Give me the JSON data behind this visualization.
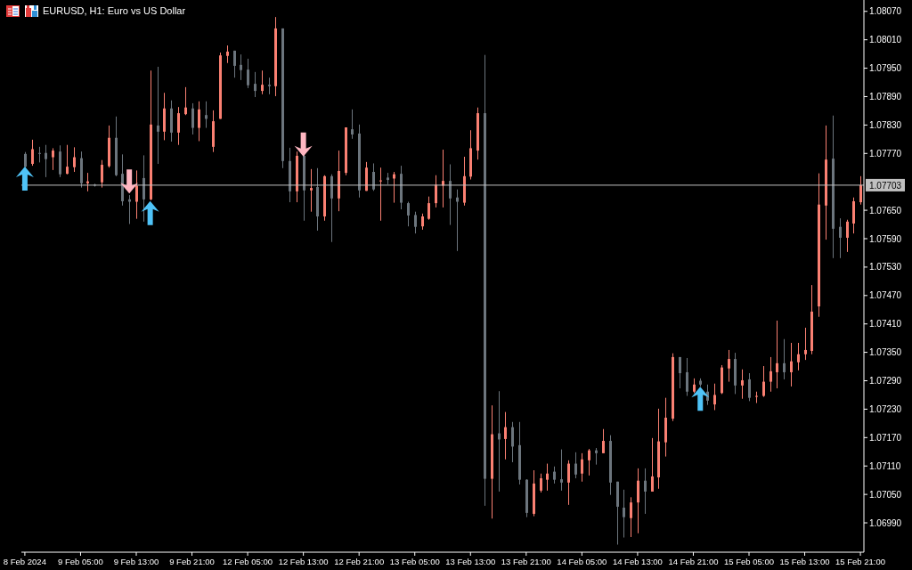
{
  "chart_data": {
    "type": "candlestick",
    "title": "EURUSD, H1: Euro vs US Dollar",
    "categories": [
      "8 Feb 2024",
      null,
      null,
      null,
      null,
      null,
      null,
      null,
      "9 Feb 05:00",
      null,
      null,
      null,
      null,
      null,
      null,
      null,
      "9 Feb 13:00",
      null,
      null,
      null,
      null,
      null,
      null,
      null,
      "9 Feb 21:00",
      null,
      null,
      null,
      null,
      null,
      null,
      null,
      "12 Feb 05:00",
      null,
      null,
      null,
      null,
      null,
      null,
      null,
      "12 Feb 13:00",
      null,
      null,
      null,
      null,
      null,
      null,
      null,
      "12 Feb 21:00",
      null,
      null,
      null,
      null,
      null,
      null,
      null,
      "13 Feb 05:00",
      null,
      null,
      null,
      null,
      null,
      null,
      null,
      "13 Feb 13:00",
      null,
      null,
      null,
      null,
      null,
      null,
      null,
      "13 Feb 21:00",
      null,
      null,
      null,
      null,
      null,
      null,
      null,
      "14 Feb 05:00",
      null,
      null,
      null,
      null,
      null,
      null,
      null,
      "14 Feb 13:00",
      null,
      null,
      null,
      null,
      null,
      null,
      null,
      "14 Feb 21:00",
      null,
      null,
      null,
      null,
      null,
      null,
      null,
      "15 Feb 05:00",
      null,
      null,
      null,
      null,
      null,
      null,
      null,
      "15 Feb 13:00",
      null,
      null,
      null,
      null,
      null,
      null,
      null,
      "15 Feb 21:00"
    ],
    "ohlc": [
      [
        1.07769,
        1.07773,
        1.0774,
        1.07742
      ],
      [
        1.07748,
        1.07799,
        1.07744,
        1.07779
      ],
      [
        1.07771,
        1.07784,
        1.07751,
        1.07769
      ],
      [
        1.07771,
        1.07788,
        1.0772,
        1.07758
      ],
      [
        1.07762,
        1.07781,
        1.07735,
        1.07776
      ],
      [
        1.07774,
        1.07787,
        1.0772,
        1.07726
      ],
      [
        1.07727,
        1.07788,
        1.07726,
        1.07742
      ],
      [
        1.07741,
        1.07783,
        1.07731,
        1.07762
      ],
      [
        1.0776,
        1.07774,
        1.07698,
        1.07707
      ],
      [
        1.07707,
        1.07729,
        1.0769,
        1.07711
      ],
      [
        1.07704,
        1.07706,
        1.077,
        1.07702
      ],
      [
        1.07709,
        1.07756,
        1.07698,
        1.07746
      ],
      [
        1.07743,
        1.07829,
        1.0774,
        1.07803
      ],
      [
        1.07803,
        1.07848,
        1.07722,
        1.07724
      ],
      [
        1.07727,
        1.07768,
        1.0766,
        1.07669
      ],
      [
        1.07673,
        1.07682,
        1.07621,
        1.07668
      ],
      [
        1.07668,
        1.07734,
        1.07632,
        1.07702
      ],
      [
        1.07718,
        1.07766,
        1.07626,
        1.07673
      ],
      [
        1.07673,
        1.07945,
        1.07671,
        1.07831
      ],
      [
        1.07829,
        1.07953,
        1.07748,
        1.07816
      ],
      [
        1.07816,
        1.07898,
        1.07798,
        1.07865
      ],
      [
        1.07865,
        1.07882,
        1.07795,
        1.07814
      ],
      [
        1.07814,
        1.07868,
        1.07788,
        1.07855
      ],
      [
        1.07853,
        1.0791,
        1.07851,
        1.07867
      ],
      [
        1.07865,
        1.07876,
        1.0781,
        1.07824
      ],
      [
        1.07824,
        1.0788,
        1.07796,
        1.07863
      ],
      [
        1.07851,
        1.0788,
        1.07824,
        1.07843
      ],
      [
        1.07784,
        1.07861,
        1.07773,
        1.07838
      ],
      [
        1.07843,
        1.07983,
        1.07843,
        1.07977
      ],
      [
        1.07976,
        1.07998,
        1.07961,
        1.07985
      ],
      [
        1.07987,
        1.07987,
        1.0793,
        1.07955
      ],
      [
        1.07957,
        1.07979,
        1.07925,
        1.07946
      ],
      [
        1.07947,
        1.0797,
        1.07908,
        1.07914
      ],
      [
        1.07917,
        1.07942,
        1.07889,
        1.07902
      ],
      [
        1.07902,
        1.07945,
        1.07895,
        1.07915
      ],
      [
        1.07915,
        1.0793,
        1.07895,
        1.07912
      ],
      [
        1.07912,
        1.08058,
        1.07891,
        1.08034
      ],
      [
        1.08034,
        1.08034,
        1.07739,
        1.07754
      ],
      [
        1.07754,
        1.07782,
        1.07667,
        1.0769
      ],
      [
        1.0769,
        1.07774,
        1.07667,
        1.07765
      ],
      [
        1.07765,
        1.07769,
        1.07628,
        1.07692
      ],
      [
        1.07692,
        1.07737,
        1.07647,
        1.07697
      ],
      [
        1.07699,
        1.07739,
        1.07607,
        1.07637
      ],
      [
        1.07637,
        1.07724,
        1.07628,
        1.07722
      ],
      [
        1.07722,
        1.07726,
        1.07583,
        1.07675
      ],
      [
        1.07675,
        1.07776,
        1.07648,
        1.07733
      ],
      [
        1.07729,
        1.07825,
        1.07724,
        1.07825
      ],
      [
        1.07821,
        1.07863,
        1.07801,
        1.0781
      ],
      [
        1.07812,
        1.07831,
        1.07677,
        1.07692
      ],
      [
        1.07691,
        1.07752,
        1.07691,
        1.0774
      ],
      [
        1.07731,
        1.07749,
        1.07691,
        1.07694
      ],
      [
        1.07711,
        1.0774,
        1.07628,
        1.07713
      ],
      [
        1.07719,
        1.07729,
        1.07705,
        1.07714
      ],
      [
        1.07717,
        1.07731,
        1.07666,
        1.07726
      ],
      [
        1.07727,
        1.07744,
        1.07652,
        1.07666
      ],
      [
        1.07665,
        1.07668,
        1.07616,
        1.07639
      ],
      [
        1.0764,
        1.07647,
        1.07601,
        1.07615
      ],
      [
        1.07616,
        1.07643,
        1.07609,
        1.07637
      ],
      [
        1.07632,
        1.07679,
        1.0763,
        1.07665
      ],
      [
        1.07665,
        1.07724,
        1.07656,
        1.07704
      ],
      [
        1.07702,
        1.07778,
        1.07656,
        1.07712
      ],
      [
        1.07712,
        1.07747,
        1.07619,
        1.07675
      ],
      [
        1.07677,
        1.07694,
        1.07564,
        1.07668
      ],
      [
        1.07666,
        1.07763,
        1.0766,
        1.07722
      ],
      [
        1.07721,
        1.07819,
        1.07715,
        1.07781
      ],
      [
        1.07776,
        1.07867,
        1.07757,
        1.07855
      ],
      [
        1.07855,
        1.07978,
        1.07026,
        1.07083
      ],
      [
        1.07083,
        1.07238,
        1.06999,
        1.07177
      ],
      [
        1.07179,
        1.07268,
        1.07056,
        1.07166
      ],
      [
        1.07167,
        1.07224,
        1.07124,
        1.07192
      ],
      [
        1.07192,
        1.07203,
        1.07118,
        1.07151
      ],
      [
        1.07154,
        1.07203,
        1.07071,
        1.07081
      ],
      [
        1.07081,
        1.07082,
        1.07002,
        1.07011
      ],
      [
        1.07009,
        1.07101,
        1.07004,
        1.07073
      ],
      [
        1.07058,
        1.07094,
        1.07054,
        1.07084
      ],
      [
        1.07081,
        1.07115,
        1.07058,
        1.07094
      ],
      [
        1.07098,
        1.07109,
        1.07073,
        1.07081
      ],
      [
        1.07082,
        1.07145,
        1.07058,
        1.07075
      ],
      [
        1.07075,
        1.07122,
        1.07028,
        1.07115
      ],
      [
        1.07115,
        1.07139,
        1.07084,
        1.07092
      ],
      [
        1.07094,
        1.07137,
        1.07077,
        1.07124
      ],
      [
        1.07122,
        1.07146,
        1.0709,
        1.07143
      ],
      [
        1.07143,
        1.07148,
        1.07113,
        1.07137
      ],
      [
        1.07137,
        1.07188,
        1.07137,
        1.07163
      ],
      [
        1.07163,
        1.07175,
        1.07049,
        1.07075
      ],
      [
        1.07077,
        1.07077,
        1.06944,
        1.07024
      ],
      [
        1.07022,
        1.0706,
        1.06959,
        1.07002
      ],
      [
        1.07,
        1.07044,
        1.0696,
        1.07033
      ],
      [
        1.07033,
        1.07105,
        1.06968,
        1.07079
      ],
      [
        1.07079,
        1.07105,
        1.07009,
        1.07056
      ],
      [
        1.07056,
        1.07169,
        1.07056,
        1.07088
      ],
      [
        1.07086,
        1.07231,
        1.07062,
        1.07162
      ],
      [
        1.0716,
        1.07254,
        1.0713,
        1.07212
      ],
      [
        1.0721,
        1.07348,
        1.07205,
        1.0734
      ],
      [
        1.0734,
        1.0734,
        1.07274,
        1.07306
      ],
      [
        1.07308,
        1.07338,
        1.07258,
        1.07267
      ],
      [
        1.07267,
        1.07295,
        1.07264,
        1.07282
      ],
      [
        1.0729,
        1.07295,
        1.07278,
        1.07282
      ],
      [
        1.07267,
        1.07282,
        1.07239,
        1.07248
      ],
      [
        1.0724,
        1.07284,
        1.07228,
        1.0726
      ],
      [
        1.07264,
        1.07323,
        1.07262,
        1.07318
      ],
      [
        1.07316,
        1.07355,
        1.07288,
        1.07336
      ],
      [
        1.07336,
        1.07349,
        1.07262,
        1.0728
      ],
      [
        1.0728,
        1.07314,
        1.07252,
        1.07291
      ],
      [
        1.07293,
        1.07306,
        1.07247,
        1.07254
      ],
      [
        1.07256,
        1.07267,
        1.07243,
        1.07258
      ],
      [
        1.07258,
        1.07321,
        1.07256,
        1.07288
      ],
      [
        1.07288,
        1.0734,
        1.07267,
        1.0731
      ],
      [
        1.07308,
        1.07417,
        1.07274,
        1.07327
      ],
      [
        1.07327,
        1.07378,
        1.07293,
        1.07308
      ],
      [
        1.07308,
        1.0737,
        1.07278,
        1.07331
      ],
      [
        1.07329,
        1.0737,
        1.07312,
        1.07346
      ],
      [
        1.07346,
        1.07402,
        1.07334,
        1.07355
      ],
      [
        1.07353,
        1.07492,
        1.07346,
        1.07436
      ],
      [
        1.07447,
        1.07728,
        1.07425,
        1.07662
      ],
      [
        1.0766,
        1.07829,
        1.07588,
        1.07757
      ],
      [
        1.07759,
        1.0785,
        1.07549,
        1.07611
      ],
      [
        1.07615,
        1.07633,
        1.07549,
        1.07592
      ],
      [
        1.07592,
        1.0763,
        1.07562,
        1.07626
      ],
      [
        1.07622,
        1.07677,
        1.07601,
        1.07669
      ],
      [
        1.07667,
        1.07722,
        1.07662,
        1.07703
      ]
    ],
    "colors": [
      "#6c757d",
      "#fa8072",
      "#6c757d",
      "#6c757d",
      "#fa8072",
      "#6c757d",
      "#fa8072",
      "#fa8072",
      "#6c757d",
      "#fa8072",
      "#6c757d",
      "#fa8072",
      "#fa8072",
      "#6c757d",
      "#6c757d",
      "#6c757d",
      "#fa8072",
      "#6c757d",
      "#fa8072",
      "#6c757d",
      "#fa8072",
      "#6c757d",
      "#fa8072",
      "#fa8072",
      "#6c757d",
      "#fa8072",
      "#6c757d",
      "#fa8072",
      "#fa8072",
      "#fa8072",
      "#6c757d",
      "#6c757d",
      "#6c757d",
      "#6c757d",
      "#fa8072",
      "#6c757d",
      "#fa8072",
      "#6c757d",
      "#6c757d",
      "#fa8072",
      "#6c757d",
      "#fa8072",
      "#6c757d",
      "#fa8072",
      "#6c757d",
      "#fa8072",
      "#fa8072",
      "#6c757d",
      "#6c757d",
      "#fa8072",
      "#6c757d",
      "#fa8072",
      "#6c757d",
      "#fa8072",
      "#6c757d",
      "#6c757d",
      "#6c757d",
      "#fa8072",
      "#fa8072",
      "#fa8072",
      "#fa8072",
      "#6c757d",
      "#6c757d",
      "#fa8072",
      "#fa8072",
      "#fa8072",
      "#6c757d",
      "#fa8072",
      "#6c757d",
      "#fa8072",
      "#6c757d",
      "#6c757d",
      "#6c757d",
      "#fa8072",
      "#fa8072",
      "#fa8072",
      "#6c757d",
      "#6c757d",
      "#fa8072",
      "#6c757d",
      "#fa8072",
      "#fa8072",
      "#6c757d",
      "#fa8072",
      "#6c757d",
      "#6c757d",
      "#6c757d",
      "#fa8072",
      "#fa8072",
      "#6c757d",
      "#fa8072",
      "#fa8072",
      "#fa8072",
      "#fa8072",
      "#6c757d",
      "#6c757d",
      "#fa8072",
      "#6c757d",
      "#6c757d",
      "#fa8072",
      "#fa8072",
      "#fa8072",
      "#6c757d",
      "#fa8072",
      "#6c757d",
      "#fa8072",
      "#fa8072",
      "#fa8072",
      "#fa8072",
      "#6c757d",
      "#fa8072",
      "#fa8072",
      "#fa8072",
      "#fa8072",
      "#fa8072",
      "#fa8072",
      "#6c757d",
      "#6c757d",
      "#fa8072",
      "#fa8072",
      "#fa8072"
    ],
    "series": [
      {
        "type": "scatter",
        "color": "#4fc3f7",
        "values": [
          1.07718,
          null,
          null,
          null,
          null,
          null,
          null,
          null,
          null,
          null,
          null,
          null,
          null,
          null,
          null,
          null,
          null,
          null,
          1.07645,
          null,
          null,
          null,
          null,
          null,
          null,
          null,
          null,
          null,
          null,
          null,
          null,
          null,
          null,
          null,
          null,
          null,
          null,
          null,
          null,
          null,
          null,
          null,
          null,
          null,
          null,
          null,
          null,
          null,
          null,
          null,
          null,
          null,
          null,
          null,
          null,
          null,
          null,
          null,
          null,
          null,
          null,
          null,
          null,
          null,
          null,
          null,
          null,
          null,
          null,
          null,
          null,
          null,
          null,
          null,
          null,
          null,
          null,
          null,
          null,
          null,
          null,
          null,
          null,
          null,
          null,
          null,
          null,
          null,
          null,
          null,
          null,
          null,
          null,
          null,
          null,
          null,
          null,
          1.07253,
          null,
          null,
          null,
          null,
          null,
          null,
          null,
          null,
          null,
          null,
          null,
          null,
          null,
          null,
          null,
          null,
          null,
          null,
          null,
          null,
          null,
          null,
          null
        ]
      },
      {
        "type": "scatter",
        "color": "#ffb6c1",
        "values": [
          null,
          null,
          null,
          null,
          null,
          null,
          null,
          null,
          null,
          null,
          null,
          null,
          null,
          null,
          null,
          1.0771,
          null,
          null,
          null,
          null,
          null,
          null,
          null,
          null,
          null,
          null,
          null,
          null,
          null,
          null,
          null,
          null,
          null,
          null,
          null,
          null,
          null,
          null,
          null,
          null,
          1.07788,
          null,
          null,
          null,
          null,
          null,
          null,
          null,
          null,
          null,
          null,
          null,
          null,
          null,
          null,
          null,
          null,
          null,
          null,
          null,
          null,
          null,
          null,
          null,
          null,
          null,
          null,
          null,
          null,
          null,
          null,
          null,
          null,
          null,
          null,
          null,
          null,
          null,
          null,
          null,
          null,
          null,
          null,
          null,
          null,
          null,
          null,
          null,
          null,
          null,
          null,
          null,
          null,
          null,
          null,
          null,
          null,
          null,
          null,
          null,
          null,
          null,
          null,
          null,
          null,
          null,
          null,
          null,
          null,
          null,
          null,
          null,
          null,
          null,
          null,
          null,
          null,
          null,
          null,
          null,
          null
        ]
      }
    ],
    "ylim": [
      1.06928,
      1.08094
    ],
    "yticks": [
      {
        "value": 1.0807,
        "label": "1.08070"
      },
      {
        "value": 1.0801,
        "label": "1.08010"
      },
      {
        "value": 1.0795,
        "label": "1.07950"
      },
      {
        "value": 1.0789,
        "label": "1.07890"
      },
      {
        "value": 1.0783,
        "label": "1.07830"
      },
      {
        "value": 1.0777,
        "label": "1.07770"
      },
      {
        "value": 1.0765,
        "label": "1.07650"
      },
      {
        "value": 1.0759,
        "label": "1.07590"
      },
      {
        "value": 1.0753,
        "label": "1.07530"
      },
      {
        "value": 1.0747,
        "label": "1.07470"
      },
      {
        "value": 1.0741,
        "label": "1.07410"
      },
      {
        "value": 1.0735,
        "label": "1.07350"
      },
      {
        "value": 1.0729,
        "label": "1.07290"
      },
      {
        "value": 1.0723,
        "label": "1.07230"
      },
      {
        "value": 1.0717,
        "label": "1.07170"
      },
      {
        "value": 1.0711,
        "label": "1.07110"
      },
      {
        "value": 1.0705,
        "label": "1.07050"
      },
      {
        "value": 1.0699,
        "label": "1.06990"
      }
    ],
    "ref_lines": [
      {
        "axis": "y",
        "value": 1.07703,
        "label": "1.07703",
        "color": "#c0c0c0"
      }
    ]
  }
}
